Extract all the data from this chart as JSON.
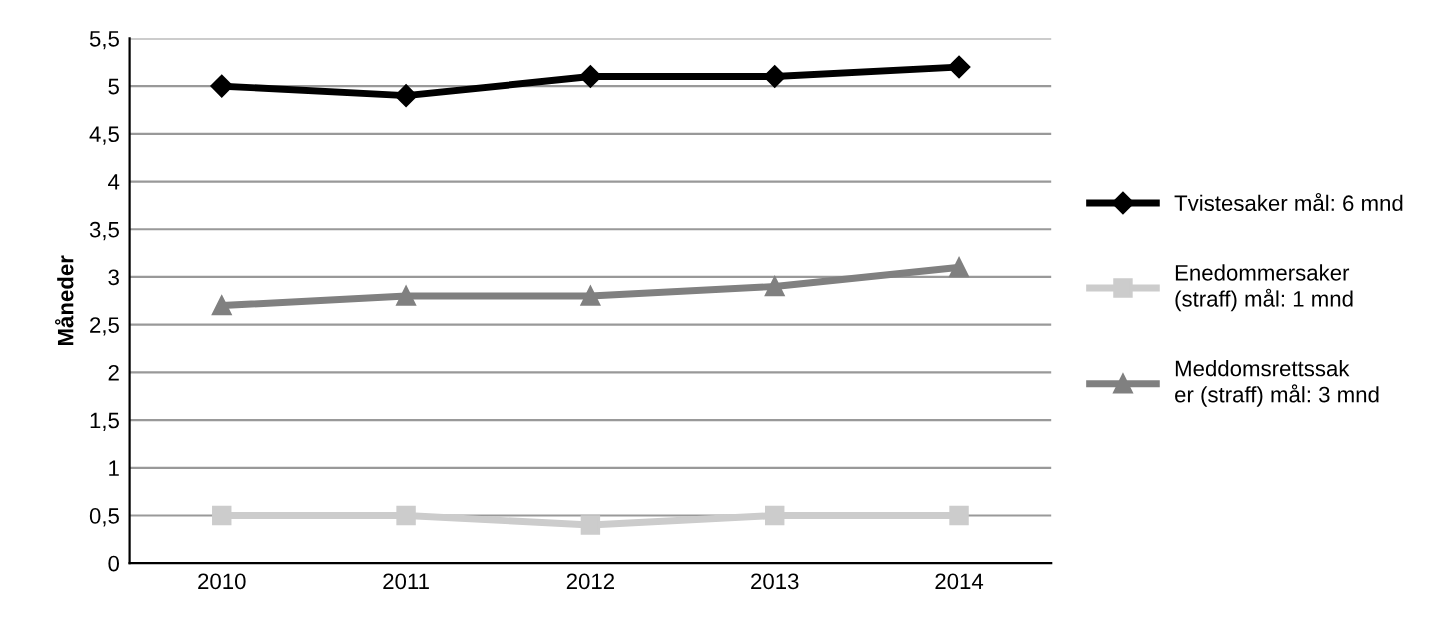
{
  "chart_data": {
    "type": "line",
    "ylabel": "Måneder",
    "categories": [
      "2010",
      "2011",
      "2012",
      "2013",
      "2014"
    ],
    "series": [
      {
        "name": "Tvistesaker mål: 6 mnd",
        "color": "#000000",
        "marker": "diamond",
        "values": [
          5.0,
          4.9,
          5.1,
          5.1,
          5.2
        ]
      },
      {
        "name": "Enedommersaker\n(straff) mål: 1 mnd",
        "color": "#cccccc",
        "marker": "square",
        "values": [
          0.5,
          0.5,
          0.4,
          0.5,
          0.5
        ]
      },
      {
        "name": "Meddomsrettssak\ner (straff) mål: 3 mnd",
        "color": "#808080",
        "marker": "triangle",
        "values": [
          2.7,
          2.8,
          2.8,
          2.9,
          3.1
        ]
      }
    ],
    "ylim": [
      0,
      5.5
    ],
    "yticks": [
      0,
      {
        "value": 0.5,
        "label": "0,5"
      },
      1,
      {
        "value": 1.5,
        "label": "1,5"
      },
      2,
      {
        "value": 2.5,
        "label": "2,5"
      },
      3,
      {
        "value": 3.5,
        "label": "3,5"
      },
      4,
      {
        "value": 4.5,
        "label": "4,5"
      },
      5,
      {
        "value": 5.5,
        "label": "5,5"
      }
    ],
    "grid": "y",
    "legend": "right",
    "line_style": "solid"
  }
}
